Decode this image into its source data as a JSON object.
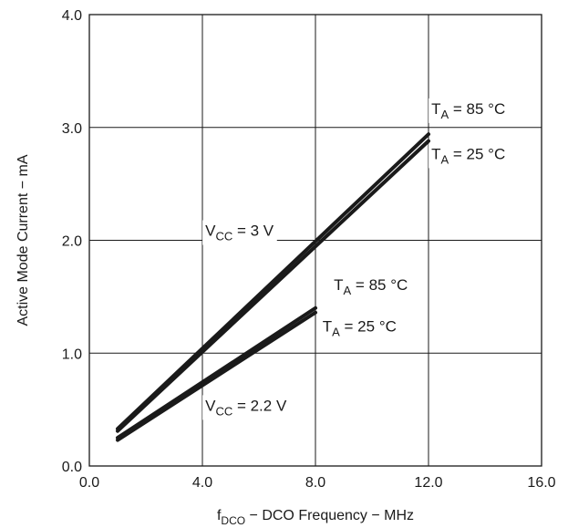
{
  "chart_data": {
    "type": "line",
    "xlabel_parts": {
      "main": "f",
      "sub": "DCO",
      "rest": " − DCO Frequency − MHz"
    },
    "ylabel": "Active Mode Current − mA",
    "xlim": [
      0,
      16
    ],
    "ylim": [
      0,
      4
    ],
    "x_ticks": [
      "0.0",
      "4.0",
      "8.0",
      "12.0",
      "16.0"
    ],
    "y_ticks": [
      "0.0",
      "1.0",
      "2.0",
      "3.0",
      "4.0"
    ],
    "grid": true,
    "series": [
      {
        "x": [
          1,
          12
        ],
        "y": [
          0.33,
          2.94
        ],
        "color": "#1a1a1a"
      },
      {
        "x": [
          1,
          12
        ],
        "y": [
          0.31,
          2.88
        ],
        "color": "#1a1a1a"
      },
      {
        "x": [
          1,
          8
        ],
        "y": [
          0.25,
          1.4
        ],
        "color": "#1a1a1a"
      },
      {
        "x": [
          1,
          8
        ],
        "y": [
          0.23,
          1.36
        ],
        "color": "#1a1a1a"
      }
    ],
    "annotations": [
      {
        "id": "ta85-3v",
        "main": "T",
        "sub": "A",
        "rest": " = 85 °C",
        "x": 12.1,
        "y": 3.12
      },
      {
        "id": "ta25-3v",
        "main": "T",
        "sub": "A",
        "rest": " = 25 °C",
        "x": 12.1,
        "y": 2.72
      },
      {
        "id": "vcc-3v",
        "main": "V",
        "sub": "CC",
        "rest": " = 3 V",
        "x": 4.1,
        "y": 2.04
      },
      {
        "id": "ta85-22v",
        "main": "T",
        "sub": "A",
        "rest": " = 85 °C",
        "x": 8.65,
        "y": 1.56
      },
      {
        "id": "ta25-22v",
        "main": "T",
        "sub": "A",
        "rest": " = 25 °C",
        "x": 8.25,
        "y": 1.19
      },
      {
        "id": "vcc-22v",
        "main": "V",
        "sub": "CC",
        "rest": " = 2.2 V",
        "x": 4.1,
        "y": 0.49
      }
    ]
  }
}
